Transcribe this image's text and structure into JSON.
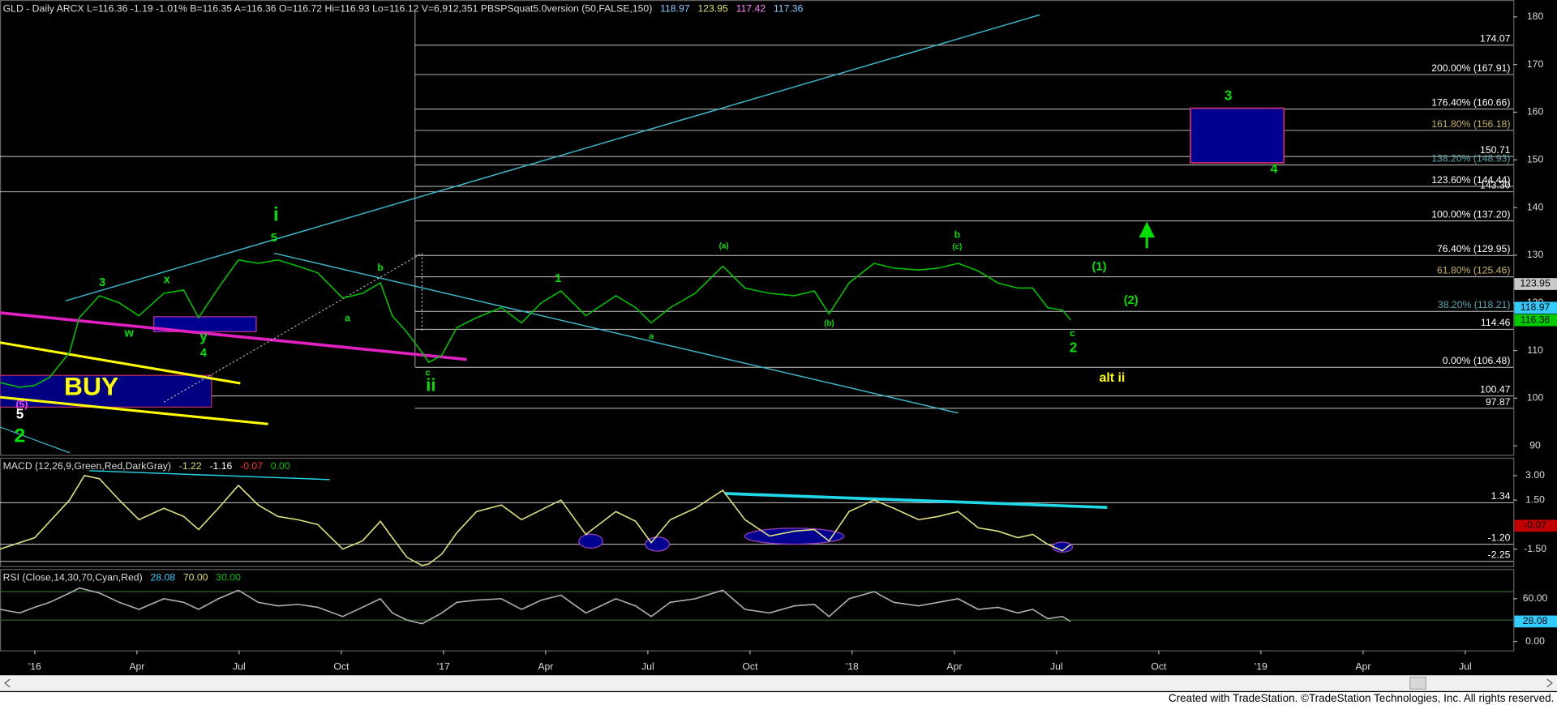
{
  "chart_data": [
    {
      "type": "line",
      "title": "GLD - Daily  ARCX  L=116.36 -1.19 -1.01% B=116.35 A=116.36 O=116.72 Hi=116.93 Lo=116.12 V=6,912,351  PBSPSquat5.0version (50,FALSE,150)",
      "header_values": [
        {
          "value": 118.97,
          "color": "#88ccff"
        },
        {
          "value": 123.95,
          "color": "#e0e070"
        },
        {
          "value": 117.42,
          "color": "#ff88ff"
        },
        {
          "value": 117.36,
          "color": "#88ccff"
        }
      ],
      "x": [
        -1.02,
        -0.44,
        0,
        0.44,
        1.02,
        1.31,
        1.9,
        2.48,
        3.06,
        3.79,
        4.37,
        4.81,
        5.39,
        5.98,
        6.56,
        7.14,
        7.73,
        8.31,
        9.04,
        9.62,
        10.15,
        10.5,
        10.93,
        11.37,
        11.57,
        11.95,
        12.39,
        12.97,
        13.7,
        14.29,
        14.87,
        15.45,
        16.18,
        17.06,
        17.64,
        18.1,
        18.66,
        19.39,
        20.2,
        20.85,
        21.57,
        22.3,
        22.89,
        23.32,
        23.91,
        24.64,
        25.22,
        25.95,
        26.53,
        27.11,
        27.7,
        28.28,
        28.86,
        29.3,
        29.74,
        30.17,
        30.41
      ],
      "values": [
        103.3,
        102.3,
        102.7,
        104.4,
        109.6,
        116.9,
        121.5,
        120,
        117.3,
        122,
        122.7,
        116.9,
        123.1,
        129,
        128.3,
        129,
        127.7,
        126.3,
        121,
        122,
        124.2,
        117.3,
        113.8,
        109.6,
        107.5,
        109,
        114.8,
        116.9,
        119,
        115.8,
        120,
        122.5,
        117.3,
        121.5,
        119,
        115.8,
        119,
        122,
        127.7,
        123.1,
        122,
        121.5,
        122.5,
        117.7,
        124.2,
        128.3,
        127.3,
        126.9,
        127.3,
        128.3,
        126.7,
        124.2,
        123.1,
        123.1,
        119,
        118.5,
        116.4
      ],
      "color": "#00c000",
      "xlim": [
        -1.02,
        43.41
      ],
      "ylim": [
        88.13,
        183.54
      ],
      "yticks": [
        90,
        100,
        110,
        120,
        130,
        140,
        150,
        160,
        170,
        180
      ],
      "levels": [
        {
          "value": 174.07,
          "color": "#ffffff"
        },
        {
          "value": 167.91,
          "label": "200.00% (167.91)",
          "color": "#ffffff"
        },
        {
          "value": 160.66,
          "label": "176.40% (160.66)",
          "color": "#ffffff"
        },
        {
          "value": 156.18,
          "label": "161.80% (156.18)",
          "color": "#c8b060"
        },
        {
          "value": 150.71,
          "color": "#ffffff"
        },
        {
          "value": 148.93,
          "label": "138.20% (148.93)",
          "color": "#5aaab0"
        },
        {
          "value": 144.44,
          "label": "123.60% (144.44)",
          "color": "#ffffff"
        },
        {
          "value": 143.3,
          "label": "143.30",
          "color": "#ffffff"
        },
        {
          "value": 137.2,
          "label": "100.00% (137.20)",
          "color": "#ffffff"
        },
        {
          "value": 129.95,
          "label": "76.40% (129.95)",
          "color": "#ffffff"
        },
        {
          "value": 125.46,
          "label": "61.80% (125.46)",
          "color": "#c8b060"
        },
        {
          "value": 118.21,
          "label": "38.20% (118.21)",
          "color": "#5aaab0"
        },
        {
          "value": 114.46,
          "color": "#ffffff"
        },
        {
          "value": 106.48,
          "label": "0.00% (106.48)",
          "color": "#ffffff"
        },
        {
          "value": 100.47,
          "color": "#ffffff"
        },
        {
          "value": 97.87,
          "color": "#ffffff"
        }
      ],
      "markers": [
        {
          "value": 123.95,
          "color": "#c8c8c8"
        },
        {
          "value": 118.97,
          "color": "#33ccff"
        },
        {
          "value": 116.36,
          "color": "#00cc00"
        }
      ],
      "annotations": [
        {
          "text": "i",
          "color": "#00e000"
        },
        {
          "text": "5",
          "color": "#00e000"
        },
        {
          "text": "3",
          "color": "#00e000"
        },
        {
          "text": "x",
          "color": "#00e000"
        },
        {
          "text": "w",
          "color": "#00e000"
        },
        {
          "text": "y",
          "color": "#00e000"
        },
        {
          "text": "4",
          "color": "#00e000"
        },
        {
          "text": "b",
          "color": "#00e000"
        },
        {
          "text": "a",
          "color": "#00e000"
        },
        {
          "text": "c",
          "color": "#00e000"
        },
        {
          "text": "ii",
          "color": "#00e000"
        },
        {
          "text": "1",
          "color": "#00e000"
        },
        {
          "text": "a",
          "color": "#00e000"
        },
        {
          "text": "(a)",
          "color": "#00e000"
        },
        {
          "text": "b",
          "color": "#00e000"
        },
        {
          "text": "(c)",
          "color": "#00e000"
        },
        {
          "text": "(b)",
          "color": "#00e000"
        },
        {
          "text": "c",
          "color": "#00e000"
        },
        {
          "text": "2",
          "color": "#00e000"
        },
        {
          "text": "(1)",
          "color": "#00e000"
        },
        {
          "text": "(2)",
          "color": "#00e000"
        },
        {
          "text": "alt ii",
          "color": "#ffff00"
        },
        {
          "text": "3",
          "color": "#00e000"
        },
        {
          "text": "4",
          "color": "#00e000"
        },
        {
          "text": "BUY",
          "color": "#ffff00"
        },
        {
          "text": "(5)",
          "color": "#ff44ff"
        },
        {
          "text": "5",
          "color": "#ffffff"
        },
        {
          "text": "2",
          "color": "#00e000"
        }
      ]
    },
    {
      "type": "line",
      "title": "MACD (12,26,9,Green,Red,DarkGray)",
      "header_values": [
        {
          "value": -1.22,
          "color": "#e0e070"
        },
        {
          "value": -1.16,
          "color": "#ffffff"
        },
        {
          "value": -0.07,
          "color": "#ff3030"
        },
        {
          "value": 0,
          "label": "0.00",
          "color": "#00c000"
        }
      ],
      "x": [
        -1.02,
        0,
        1.02,
        1.46,
        1.9,
        2.48,
        3.06,
        3.79,
        4.37,
        4.81,
        5.39,
        5.98,
        6.56,
        7.14,
        7.73,
        8.31,
        9.04,
        9.62,
        10.15,
        10.5,
        10.93,
        11.37,
        11.57,
        11.95,
        12.39,
        12.97,
        13.7,
        14.29,
        14.87,
        15.45,
        16.18,
        17.06,
        17.64,
        18.1,
        18.66,
        19.39,
        20.2,
        20.85,
        21.57,
        22.3,
        22.89,
        23.32,
        23.91,
        24.64,
        25.22,
        25.95,
        26.53,
        27.11,
        27.7,
        28.28,
        28.86,
        29.3,
        29.74,
        30.17,
        30.41
      ],
      "values": [
        -1.5,
        -0.8,
        1.5,
        3,
        2.8,
        1.5,
        0.3,
        1,
        0.5,
        -0.3,
        1,
        2.4,
        1.2,
        0.5,
        0.3,
        0,
        -1.5,
        -1,
        0.2,
        -0.8,
        -2,
        -2.5,
        -2.4,
        -1.8,
        -0.5,
        0.8,
        1.2,
        0.3,
        0.9,
        1.5,
        -0.6,
        0.8,
        0.2,
        -1.1,
        0.3,
        1,
        2.1,
        0.3,
        -0.7,
        -0.4,
        -0.3,
        -1,
        0.8,
        1.5,
        1,
        0.3,
        0.5,
        0.8,
        -0.2,
        -0.4,
        -0.8,
        -0.6,
        -1.2,
        -1.6,
        -1.22
      ],
      "color": "#e0e080",
      "xlim": [
        -1.02,
        43.41
      ],
      "ylim": [
        -2.53,
        4.09
      ],
      "yticks": [
        {
          "value": 3,
          "label": "3.00"
        },
        {
          "value": 1.5,
          "label": "1.50"
        },
        {
          "value": -1.5,
          "label": "-1.50"
        }
      ],
      "levels": [
        {
          "value": 1.34,
          "color": "#ffffff"
        },
        {
          "value": -1.2,
          "label": "-1.20",
          "color": "#ffffff"
        },
        {
          "value": -2.25,
          "color": "#ffffff"
        }
      ],
      "markers": [
        {
          "value": -0.07,
          "color": "#c00000"
        }
      ]
    },
    {
      "type": "line",
      "title": "RSI (Close,14,30,70,Cyan,Red)",
      "header_values": [
        {
          "value": 28.08,
          "color": "#33ccff"
        },
        {
          "value": 70,
          "label": "70.00",
          "color": "#e0e070"
        },
        {
          "value": 30,
          "label": "30.00",
          "color": "#00c000"
        }
      ],
      "x": [
        -1.02,
        -0.44,
        0,
        0.44,
        1.02,
        1.31,
        1.9,
        2.48,
        3.06,
        3.79,
        4.37,
        4.81,
        5.39,
        5.98,
        6.56,
        7.14,
        7.73,
        8.31,
        9.04,
        9.62,
        10.15,
        10.5,
        10.93,
        11.37,
        11.57,
        11.95,
        12.39,
        12.97,
        13.7,
        14.29,
        14.87,
        15.45,
        16.18,
        17.06,
        17.64,
        18.1,
        18.66,
        19.39,
        20.2,
        20.85,
        21.57,
        22.3,
        22.89,
        23.32,
        23.91,
        24.64,
        25.22,
        25.95,
        26.53,
        27.11,
        27.7,
        28.28,
        28.86,
        29.3,
        29.74,
        30.17,
        30.41
      ],
      "values": [
        45,
        40,
        48,
        55,
        68,
        75,
        68,
        55,
        45,
        60,
        55,
        45,
        60,
        72,
        55,
        50,
        52,
        48,
        35,
        48,
        60,
        40,
        30,
        25,
        30,
        40,
        55,
        58,
        60,
        45,
        58,
        65,
        40,
        60,
        50,
        35,
        55,
        60,
        72,
        45,
        40,
        50,
        52,
        35,
        60,
        70,
        55,
        50,
        55,
        60,
        45,
        48,
        40,
        45,
        32,
        35,
        28.08
      ],
      "color": "#b0b0b0",
      "xlim": [
        -1.02,
        43.41
      ],
      "ylim": [
        -12.56,
        101.86
      ],
      "yticks": [
        {
          "value": 60,
          "label": "60.00"
        },
        {
          "value": 0,
          "label": "0.00"
        }
      ],
      "markers": [
        {
          "value": 28.08,
          "color": "#33ccff"
        }
      ],
      "xticks": [
        {
          "value": 0,
          "label": "'16"
        },
        {
          "value": 3,
          "label": "Apr"
        },
        {
          "value": 6,
          "label": "Jul"
        },
        {
          "value": 9,
          "label": "Oct"
        },
        {
          "value": 12,
          "label": "'17"
        },
        {
          "value": 15,
          "label": "Apr"
        },
        {
          "value": 18,
          "label": "Jul"
        },
        {
          "value": 21,
          "label": "Oct"
        },
        {
          "value": 24,
          "label": "'18"
        },
        {
          "value": 27,
          "label": "Apr"
        },
        {
          "value": 30,
          "label": "Jul"
        },
        {
          "value": 33,
          "label": "Oct"
        },
        {
          "value": 36,
          "label": "'19"
        },
        {
          "value": 39,
          "label": "Apr"
        },
        {
          "value": 42,
          "label": "Jul"
        }
      ]
    }
  ],
  "footer": "Created with TradeStation. ©TradeStation Technologies, Inc. All rights reserved."
}
